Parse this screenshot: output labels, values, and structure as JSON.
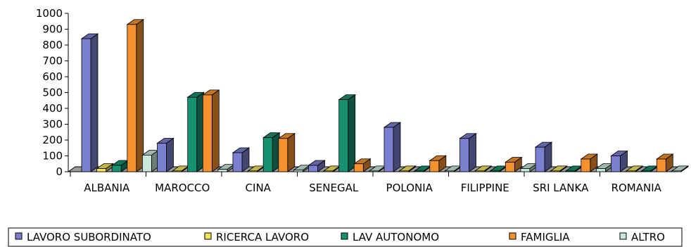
{
  "chart_data": {
    "type": "bar",
    "categories": [
      "ALBANIA",
      "MAROCCO",
      "CINA",
      "SENEGAL",
      "POLONIA",
      "FILIPPINE",
      "SRI LANKA",
      "ROMANIA"
    ],
    "series": [
      {
        "name": "LAVORO SUBORDINATO",
        "color": "#7b7fd0",
        "values": [
          840,
          180,
          120,
          40,
          280,
          210,
          155,
          100
        ]
      },
      {
        "name": "RICERCA LAVORO",
        "color": "#f2e35c",
        "values": [
          20,
          5,
          5,
          5,
          5,
          5,
          5,
          5
        ]
      },
      {
        "name": "LAV AUTONOMO",
        "color": "#179271",
        "values": [
          40,
          470,
          215,
          455,
          5,
          5,
          5,
          5
        ]
      },
      {
        "name": "FAMIGLIA",
        "color": "#f5922e",
        "values": [
          930,
          485,
          210,
          50,
          70,
          60,
          80,
          80
        ]
      },
      {
        "name": "ALTRO",
        "color": "#c7e8d8",
        "values": [
          105,
          15,
          10,
          5,
          5,
          20,
          20,
          5
        ]
      }
    ],
    "yticks": [
      0,
      100,
      200,
      300,
      400,
      500,
      600,
      700,
      800,
      900,
      1000
    ],
    "ylim": [
      0,
      1000
    ],
    "legend_position": "bottom",
    "grid": false
  }
}
